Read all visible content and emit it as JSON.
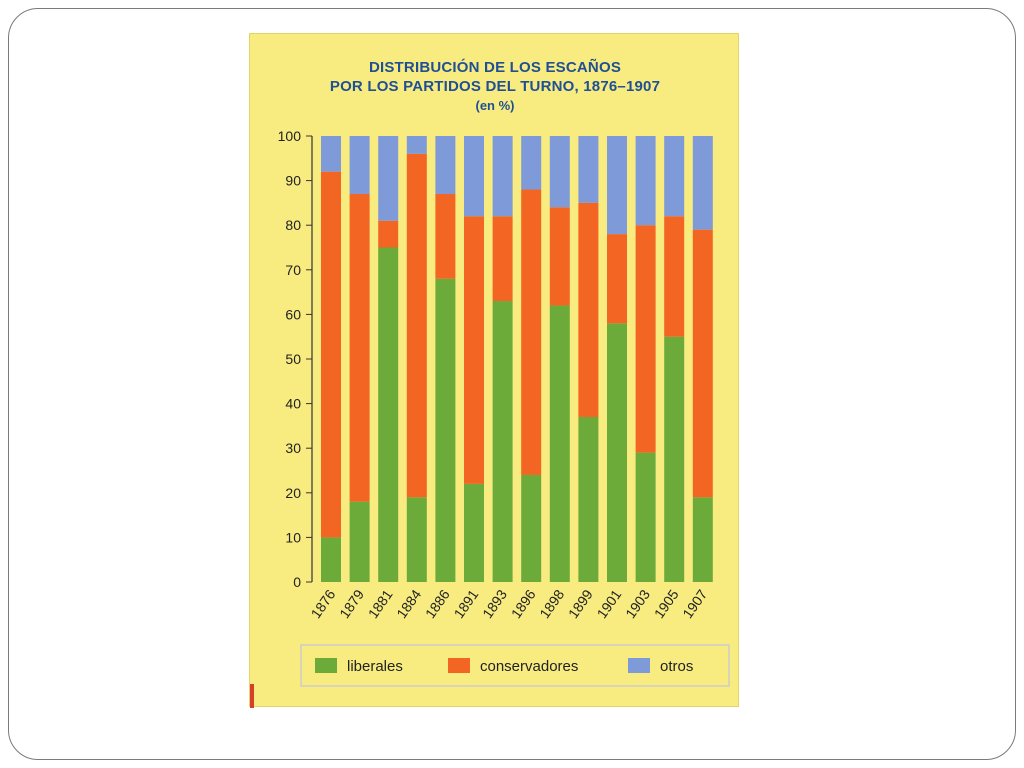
{
  "chart_data": {
    "type": "bar",
    "stacked": true,
    "title": "DISTRIBUCIÓN DE LOS ESCAÑOS",
    "title_line2": "POR LOS PARTIDOS DEL TURNO, 1876–1907",
    "subtitle": "(en %)",
    "xlabel": "",
    "ylabel": "",
    "ylim": [
      0,
      100
    ],
    "yticks": [
      0,
      10,
      20,
      30,
      40,
      50,
      60,
      70,
      80,
      90,
      100
    ],
    "grid": false,
    "legend_position": "bottom",
    "categories": [
      "1876",
      "1879",
      "1881",
      "1884",
      "1886",
      "1891",
      "1893",
      "1896",
      "1898",
      "1899",
      "1901",
      "1903",
      "1905",
      "1907"
    ],
    "series": [
      {
        "name": "liberales",
        "color": "#6cab3a",
        "values": [
          10,
          18,
          75,
          19,
          68,
          22,
          63,
          24,
          62,
          37,
          58,
          29,
          55,
          19
        ]
      },
      {
        "name": "conservadores",
        "color": "#f26522",
        "values": [
          82,
          69,
          6,
          77,
          19,
          60,
          19,
          64,
          22,
          48,
          20,
          51,
          27,
          60
        ]
      },
      {
        "name": "otros",
        "color": "#7f9ad8",
        "values": [
          8,
          13,
          19,
          4,
          13,
          18,
          18,
          12,
          16,
          15,
          22,
          20,
          18,
          21
        ]
      }
    ]
  }
}
